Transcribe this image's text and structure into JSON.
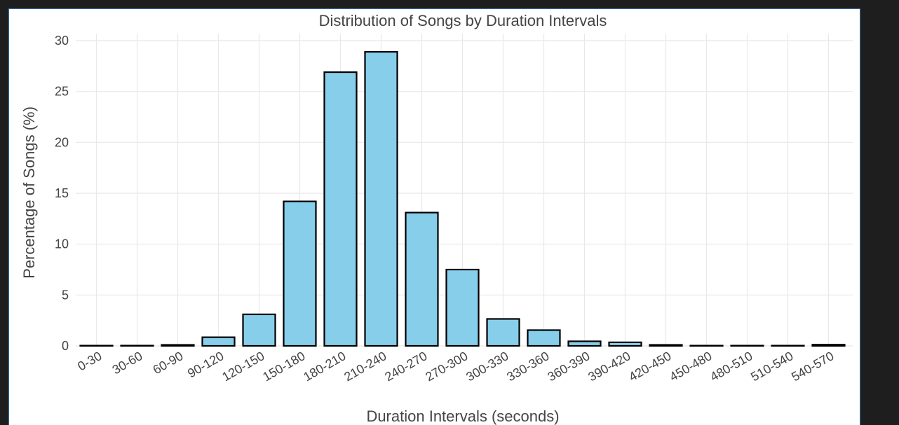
{
  "chart_data": {
    "type": "bar",
    "title": "Distribution of Songs by Duration Intervals",
    "xlabel": "Duration Intervals (seconds)",
    "ylabel": "Percentage of Songs (%)",
    "categories": [
      "0-30",
      "30-60",
      "60-90",
      "90-120",
      "120-150",
      "150-180",
      "180-210",
      "210-240",
      "240-270",
      "270-300",
      "300-330",
      "330-360",
      "360-390",
      "390-420",
      "420-450",
      "450-480",
      "480-510",
      "510-540",
      "540-570"
    ],
    "values": [
      0.02,
      0.03,
      0.1,
      0.85,
      3.1,
      14.2,
      26.9,
      28.9,
      13.1,
      7.5,
      2.65,
      1.55,
      0.45,
      0.35,
      0.1,
      0.02,
      0.02,
      0.02,
      0.12
    ],
    "ylim": [
      0,
      30
    ],
    "yticks": [
      0,
      5,
      10,
      15,
      20,
      25,
      30
    ],
    "grid": true,
    "bar_color": "#87ceeb",
    "bar_edge_color": "#000000"
  }
}
